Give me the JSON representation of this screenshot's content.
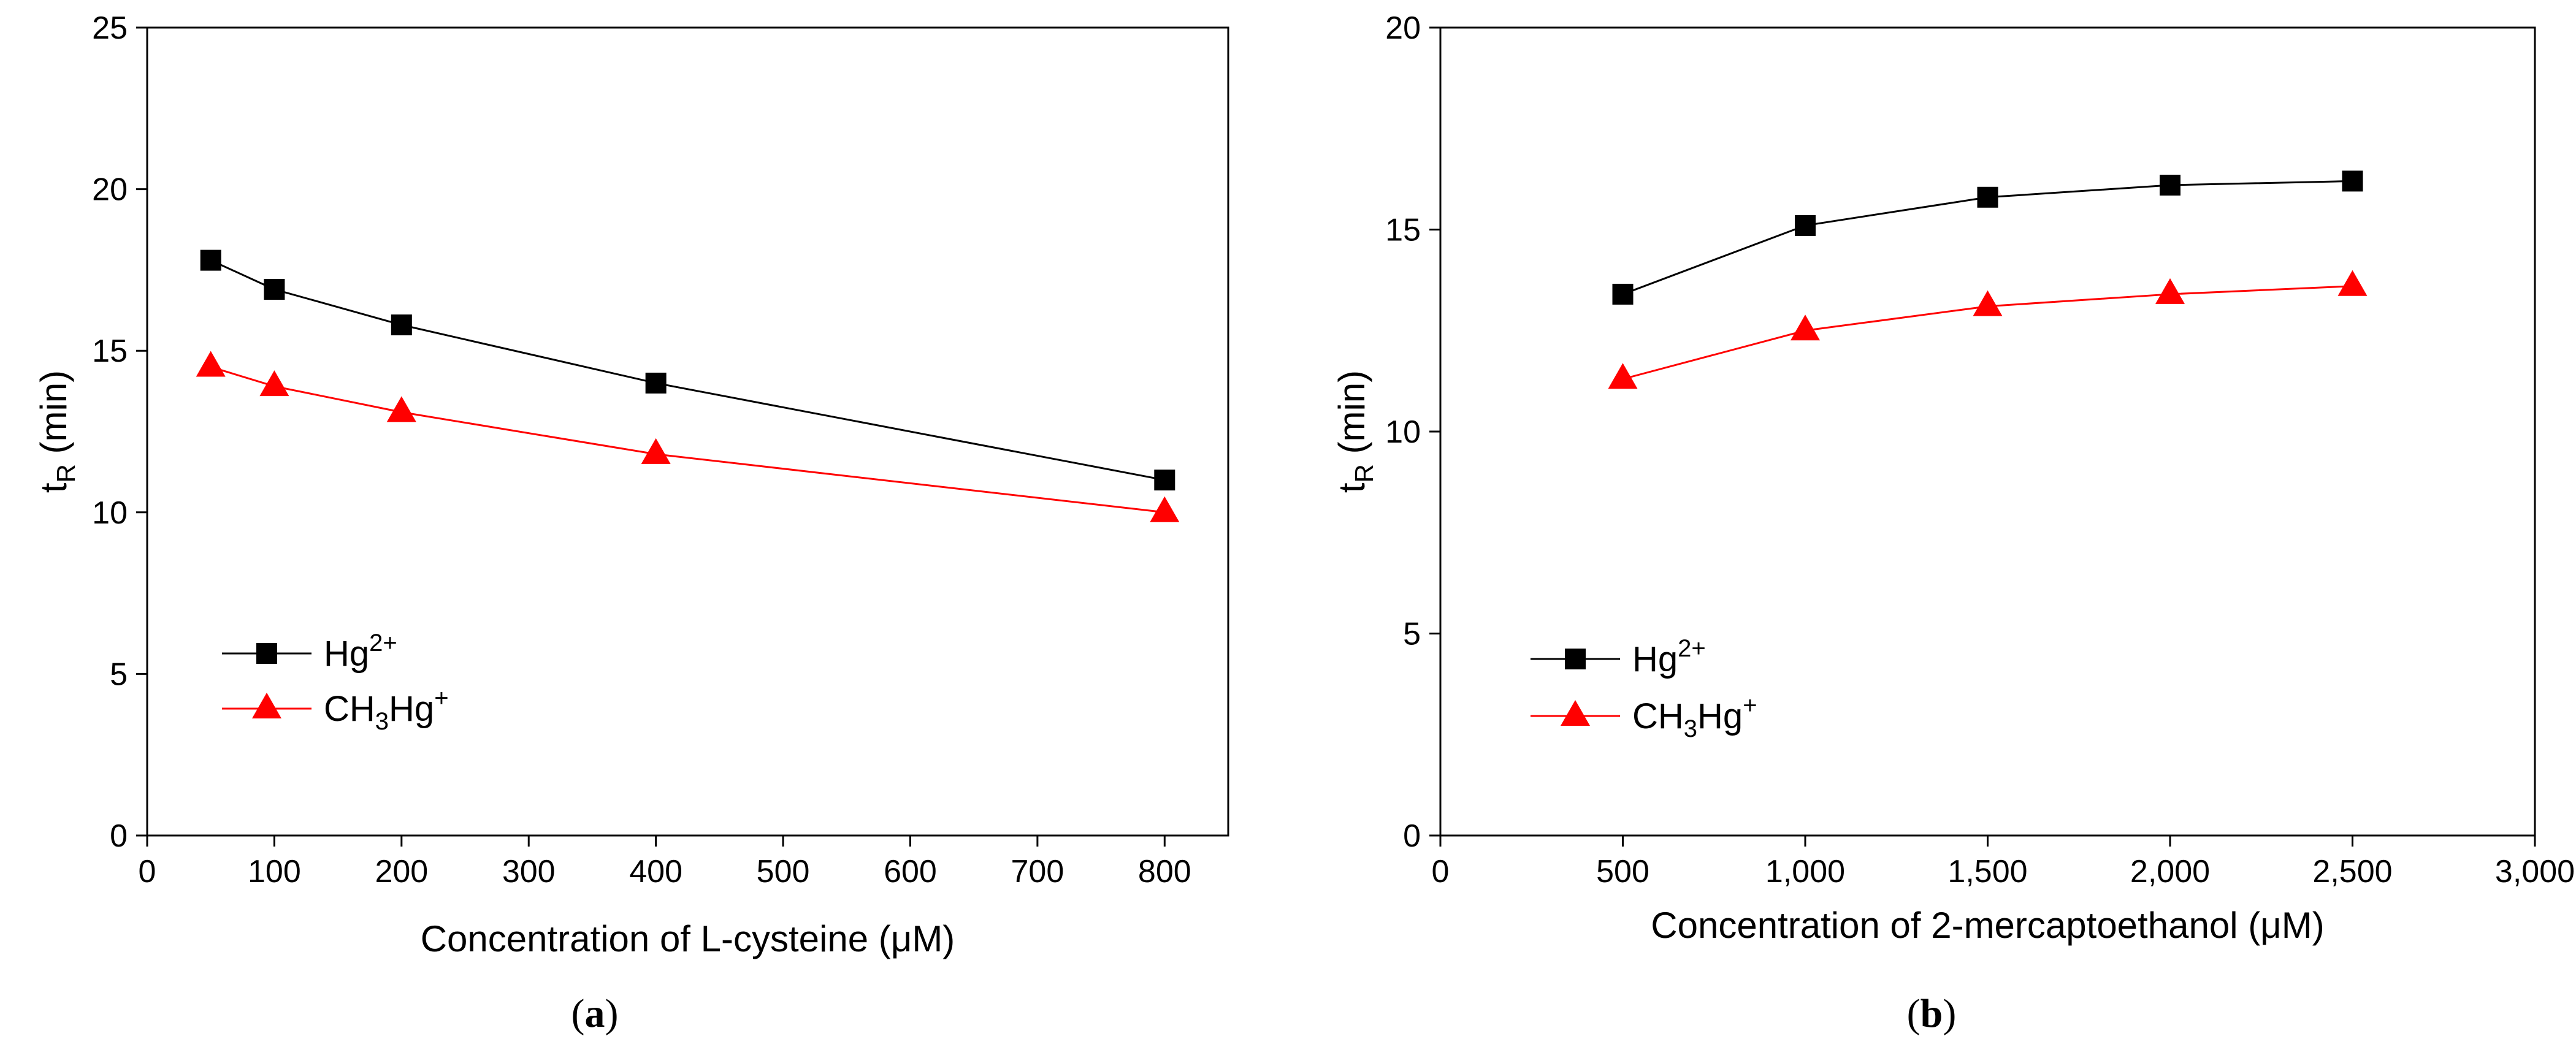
{
  "chart_data": [
    {
      "type": "line",
      "panel_label": "a",
      "xlabel": "Concentration of L-cysteine (μM)",
      "ylabel": "t",
      "ylabel_subscript": "R",
      "ylabel_unit": " (min)",
      "xlim": [
        0,
        850
      ],
      "ylim": [
        0,
        25
      ],
      "xticks": [
        0,
        100,
        200,
        300,
        400,
        500,
        600,
        700,
        800
      ],
      "xtick_labels": [
        "0",
        "100",
        "200",
        "300",
        "400",
        "500",
        "600",
        "700",
        "800"
      ],
      "yticks": [
        0,
        5,
        10,
        15,
        20,
        25
      ],
      "ytick_labels": [
        "0",
        "5",
        "10",
        "15",
        "20",
        "25"
      ],
      "legend_position": "lower-left",
      "series": [
        {
          "name": "Hg",
          "name_sup": "2+",
          "color": "#000000",
          "marker": "square",
          "x": [
            50,
            100,
            200,
            400,
            800
          ],
          "values": [
            17.8,
            16.9,
            15.8,
            14.0,
            11.0
          ]
        },
        {
          "name": "CH",
          "name_sub": "3",
          "name_mid": "Hg",
          "name_sup": "+",
          "color": "#ff0000",
          "marker": "triangle",
          "x": [
            50,
            100,
            200,
            400,
            800
          ],
          "values": [
            14.5,
            13.9,
            13.1,
            11.8,
            10.0
          ]
        }
      ]
    },
    {
      "type": "line",
      "panel_label": "b",
      "xlabel": "Concentration of 2-mercaptoethanol (μM)",
      "ylabel": "t",
      "ylabel_subscript": "R",
      "ylabel_unit": " (min)",
      "xlim": [
        0,
        3000
      ],
      "ylim": [
        0,
        20
      ],
      "xticks": [
        0,
        500,
        1000,
        1500,
        2000,
        2500,
        3000
      ],
      "xtick_labels": [
        "0",
        "500",
        "1,000",
        "1,500",
        "2,000",
        "2,500",
        "3,000"
      ],
      "yticks": [
        0,
        5,
        10,
        15,
        20
      ],
      "ytick_labels": [
        "0",
        "5",
        "10",
        "15",
        "20"
      ],
      "legend_position": "lower-left",
      "series": [
        {
          "name": "Hg",
          "name_sup": "2+",
          "color": "#000000",
          "marker": "square",
          "x": [
            500,
            1000,
            1500,
            2000,
            2500
          ],
          "values": [
            13.4,
            15.1,
            15.8,
            16.1,
            16.2
          ]
        },
        {
          "name": "CH",
          "name_sub": "3",
          "name_mid": "Hg",
          "name_sup": "+",
          "color": "#ff0000",
          "marker": "triangle",
          "x": [
            500,
            1000,
            1500,
            2000,
            2500
          ],
          "values": [
            11.3,
            12.5,
            13.1,
            13.4,
            13.6
          ]
        }
      ]
    }
  ]
}
